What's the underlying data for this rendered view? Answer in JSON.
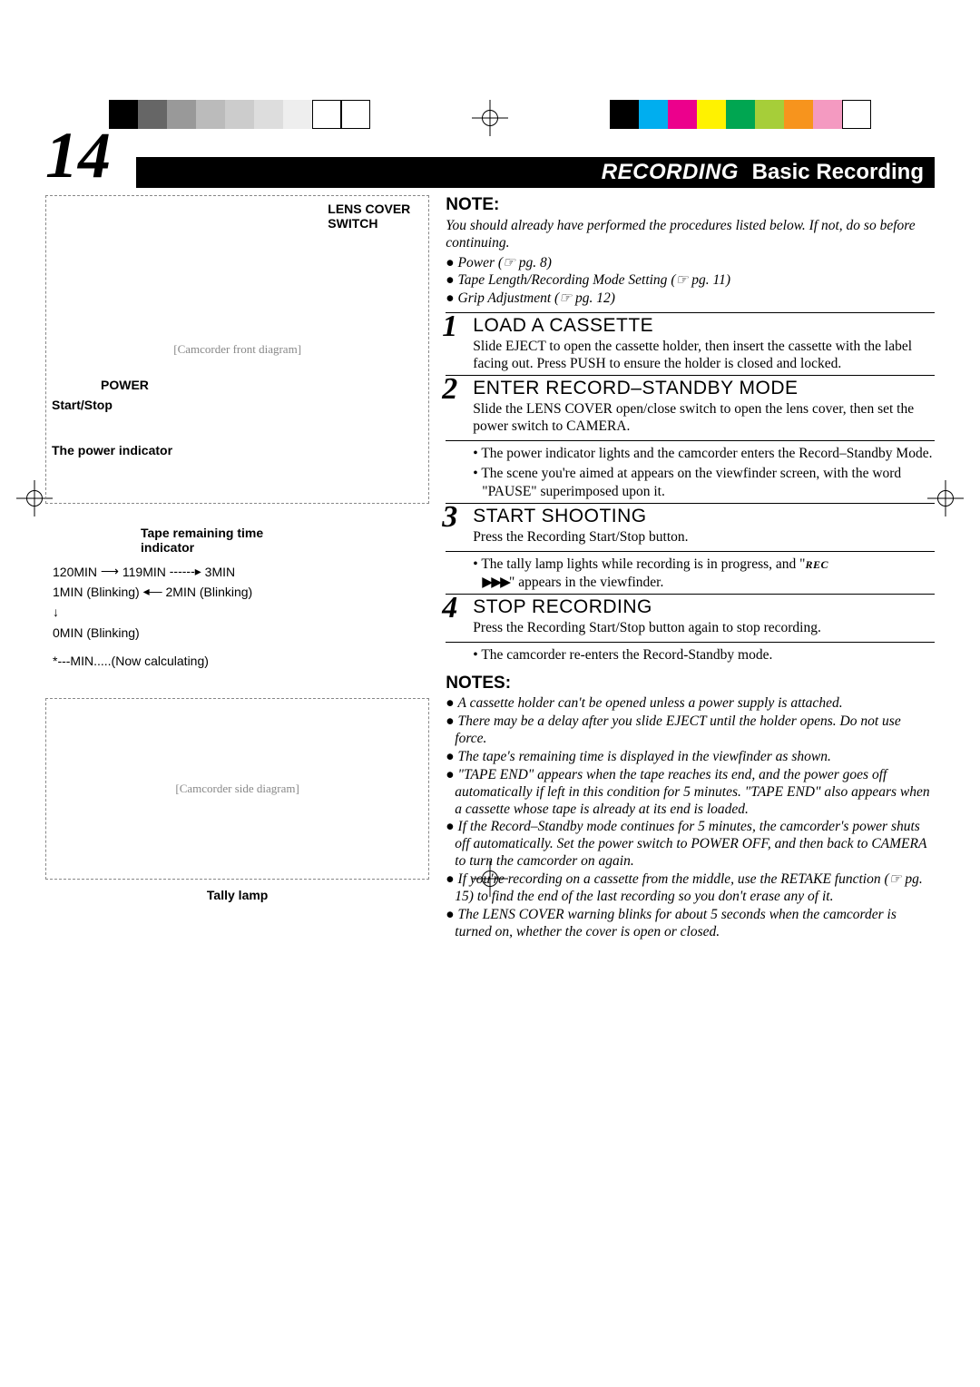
{
  "page": {
    "number": "14",
    "section": "RECORDING",
    "subtitle": "Basic Recording"
  },
  "regColors": {
    "left": [
      "#000000",
      "#666666",
      "#999999",
      "#bbbbbb",
      "#cccccc",
      "#dddddd",
      "#eeeeee",
      "#ffffff",
      "#ffffff"
    ],
    "right": [
      "#000000",
      "#00aeef",
      "#ec008c",
      "#fff200",
      "#00a651",
      "#a6ce39",
      "#f7941d",
      "#f49ac1",
      "#ffffff"
    ]
  },
  "labels": {
    "lensCover": "LENS COVER\nSWITCH",
    "power": "POWER",
    "startStop": "Start/Stop",
    "powerIndicator": "The power indicator",
    "tapeRemaining": "Tape remaining time\nindicator",
    "tallyLamp": "Tally lamp",
    "diagram1": "[Camcorder front diagram]",
    "diagram2": "[Camcorder side diagram]"
  },
  "tapeLines": {
    "l1a": "120MIN",
    "l1b": "119MIN",
    "l1c": "3MIN",
    "l2a": "1MIN (Blinking)",
    "l2b": "2MIN (Blinking)",
    "l3": "0MIN (Blinking)",
    "l4": "*---MIN.....(Now calculating)"
  },
  "note": {
    "heading": "NOTE:",
    "intro": "You should already have performed the procedures listed below. If not, do so before continuing.",
    "prereqs": [
      {
        "text": "Power",
        "ref": "pg. 8"
      },
      {
        "text": "Tape Length/Recording Mode Setting",
        "ref": "pg. 11"
      },
      {
        "text": "Grip Adjustment",
        "ref": "pg. 12"
      }
    ]
  },
  "steps": [
    {
      "num": "1",
      "title": "LOAD A CASSETTE",
      "body": "Slide EJECT to open the cassette holder, then insert the cassette with the label facing out. Press PUSH to ensure the holder is closed and locked.",
      "sub": []
    },
    {
      "num": "2",
      "title": "ENTER RECORD–STANDBY MODE",
      "body": "Slide the LENS COVER open/close switch to open the lens cover, then set the power switch to CAMERA.",
      "sub": [
        "The power indicator lights and the camcorder enters the Record–Standby Mode.",
        "The scene you're aimed at appears on the viewfinder screen, with the word \"PAUSE\" superimposed upon it."
      ]
    },
    {
      "num": "3",
      "title": "START SHOOTING",
      "body": "Press the Recording Start/Stop button.",
      "sub": [
        "The tally lamp lights while recording is in progress, and \"REC ▶▶▶\" appears in the viewfinder."
      ],
      "recSymbol": true
    },
    {
      "num": "4",
      "title": "STOP RECORDING",
      "body": "Press the Recording Start/Stop button again to stop recording.",
      "sub": [
        "The camcorder re-enters the Record-Standby mode."
      ]
    }
  ],
  "notes": {
    "heading": "NOTES:",
    "items": [
      "A cassette holder can't be opened unless a power supply is attached.",
      "There may be a delay after you slide EJECT until the holder opens. Do not use force.",
      "The tape's remaining time is displayed in the viewfinder as shown.",
      "\"TAPE END\" appears when the tape reaches its end, and the power goes off automatically if left in this condition for 5 minutes. \"TAPE END\" also appears when a cassette whose tape is already at its end is loaded.",
      "If the Record–Standby mode continues for 5 minutes, the camcorder's power shuts off automatically. Set the power switch to POWER OFF, and then back to CAMERA to turn the camcorder on again.",
      "If you're recording on a cassette from the middle, use the RETAKE function (☞ pg. 15) to find the end of the last recording so you don't erase any of it.",
      "The LENS COVER warning blinks for about 5 seconds when the camcorder is turned on, whether the cover is open or closed."
    ]
  }
}
